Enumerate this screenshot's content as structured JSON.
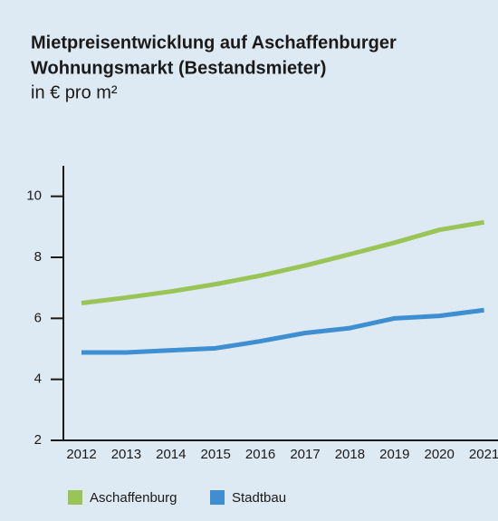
{
  "chart_data": {
    "type": "line",
    "title": [
      "Mietpreisentwicklung auf Aschaffenburger",
      "Wohnungsmarkt (Bestandsmieter)"
    ],
    "subtitle": "in € pro m²",
    "categories": [
      "2012",
      "2013",
      "2014",
      "2015",
      "2016",
      "2017",
      "2018",
      "2019",
      "2020",
      "2021"
    ],
    "series": [
      {
        "name": "Aschaffenburg",
        "color": "#9bc456",
        "values": [
          6.5,
          6.68,
          6.88,
          7.12,
          7.4,
          7.73,
          8.1,
          8.48,
          8.9,
          9.15
        ]
      },
      {
        "name": "Stadtbau",
        "color": "#3d8fd1",
        "values": [
          4.88,
          4.88,
          4.95,
          5.02,
          5.25,
          5.52,
          5.68,
          6.0,
          6.08,
          6.27
        ]
      }
    ],
    "ylim": [
      2,
      11
    ],
    "yticks": [
      2,
      4,
      6,
      8,
      10
    ]
  }
}
